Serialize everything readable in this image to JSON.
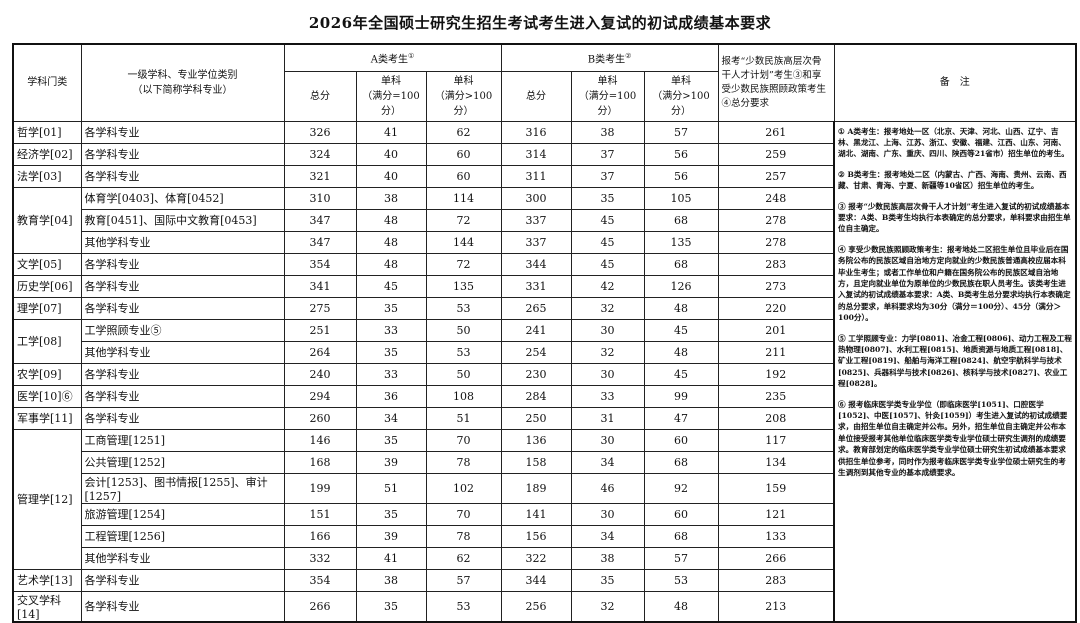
{
  "title": "2026年全国硕士研究生招生考试考生进入复试的初试成绩基本要求",
  "headers": {
    "discipline": "学科门类",
    "major": "一级学科、专业学位类别\n（以下简称学科专业）",
    "group_a": "A类考生",
    "group_a_mark": "①",
    "group_b": "B类考生",
    "group_b_mark": "②",
    "minority": "报考“少数民族高层次骨干人才计划”考生③和享受少数民族照顾政策考生④总分要求",
    "notes": "备　注",
    "total": "总分",
    "single_100": "单科\n（满分=100分）",
    "single_gt100": "单科\n（满分>100分）"
  },
  "rows": [
    {
      "discipline": "哲学[01]",
      "span": 1,
      "major": "各学科专业",
      "a": [
        "326",
        "41",
        "62"
      ],
      "b": [
        "316",
        "38",
        "57"
      ],
      "m": "261"
    },
    {
      "discipline": "经济学[02]",
      "span": 1,
      "major": "各学科专业",
      "a": [
        "324",
        "40",
        "60"
      ],
      "b": [
        "314",
        "37",
        "56"
      ],
      "m": "259"
    },
    {
      "discipline": "法学[03]",
      "span": 1,
      "major": "各学科专业",
      "a": [
        "321",
        "40",
        "60"
      ],
      "b": [
        "311",
        "37",
        "56"
      ],
      "m": "257"
    },
    {
      "discipline": "教育学[04]",
      "span": 3,
      "major": "体育学[0403]、体育[0452]",
      "a": [
        "310",
        "38",
        "114"
      ],
      "b": [
        "300",
        "35",
        "105"
      ],
      "m": "248"
    },
    {
      "major": "教育[0451]、国际中文教育[0453]",
      "a": [
        "347",
        "48",
        "72"
      ],
      "b": [
        "337",
        "45",
        "68"
      ],
      "m": "278"
    },
    {
      "major": "其他学科专业",
      "a": [
        "347",
        "48",
        "144"
      ],
      "b": [
        "337",
        "45",
        "135"
      ],
      "m": "278"
    },
    {
      "discipline": "文学[05]",
      "span": 1,
      "major": "各学科专业",
      "a": [
        "354",
        "48",
        "72"
      ],
      "b": [
        "344",
        "45",
        "68"
      ],
      "m": "283"
    },
    {
      "discipline": "历史学[06]",
      "span": 1,
      "major": "各学科专业",
      "a": [
        "341",
        "45",
        "135"
      ],
      "b": [
        "331",
        "42",
        "126"
      ],
      "m": "273"
    },
    {
      "discipline": "理学[07]",
      "span": 1,
      "major": "各学科专业",
      "a": [
        "275",
        "35",
        "53"
      ],
      "b": [
        "265",
        "32",
        "48"
      ],
      "m": "220"
    },
    {
      "discipline": "工学[08]",
      "span": 2,
      "major": "工学照顾专业⑤",
      "a": [
        "251",
        "33",
        "50"
      ],
      "b": [
        "241",
        "30",
        "45"
      ],
      "m": "201"
    },
    {
      "major": "其他学科专业",
      "a": [
        "264",
        "35",
        "53"
      ],
      "b": [
        "254",
        "32",
        "48"
      ],
      "m": "211"
    },
    {
      "discipline": "农学[09]",
      "span": 1,
      "major": "各学科专业",
      "a": [
        "240",
        "33",
        "50"
      ],
      "b": [
        "230",
        "30",
        "45"
      ],
      "m": "192"
    },
    {
      "discipline": "医学[10]⑥",
      "span": 1,
      "major": "各学科专业",
      "a": [
        "294",
        "36",
        "108"
      ],
      "b": [
        "284",
        "33",
        "99"
      ],
      "m": "235"
    },
    {
      "discipline": "军事学[11]",
      "span": 1,
      "major": "各学科专业",
      "a": [
        "260",
        "34",
        "51"
      ],
      "b": [
        "250",
        "31",
        "47"
      ],
      "m": "208"
    },
    {
      "discipline": "管理学[12]",
      "span": 6,
      "major": "工商管理[1251]",
      "a": [
        "146",
        "35",
        "70"
      ],
      "b": [
        "136",
        "30",
        "60"
      ],
      "m": "117"
    },
    {
      "major": "公共管理[1252]",
      "a": [
        "168",
        "39",
        "78"
      ],
      "b": [
        "158",
        "34",
        "68"
      ],
      "m": "134"
    },
    {
      "major": "会计[1253]、图书情报[1255]、审计[1257]",
      "a": [
        "199",
        "51",
        "102"
      ],
      "b": [
        "189",
        "46",
        "92"
      ],
      "m": "159"
    },
    {
      "major": "旅游管理[1254]",
      "a": [
        "151",
        "35",
        "70"
      ],
      "b": [
        "141",
        "30",
        "60"
      ],
      "m": "121"
    },
    {
      "major": "工程管理[1256]",
      "a": [
        "166",
        "39",
        "78"
      ],
      "b": [
        "156",
        "34",
        "68"
      ],
      "m": "133"
    },
    {
      "major": "其他学科专业",
      "a": [
        "332",
        "41",
        "62"
      ],
      "b": [
        "322",
        "38",
        "57"
      ],
      "m": "266"
    },
    {
      "discipline": "艺术学[13]",
      "span": 1,
      "major": "各学科专业",
      "a": [
        "354",
        "38",
        "57"
      ],
      "b": [
        "344",
        "35",
        "53"
      ],
      "m": "283"
    },
    {
      "discipline": "交叉学科[14]",
      "span": 1,
      "major": "各学科专业",
      "a": [
        "266",
        "35",
        "53"
      ],
      "b": [
        "256",
        "32",
        "48"
      ],
      "m": "213"
    }
  ],
  "notes": [
    "① A类考生：报考地处一区（北京、天津、河北、山西、辽宁、吉林、黑龙江、上海、江苏、浙江、安徽、福建、江西、山东、河南、湖北、湖南、广东、重庆、四川、陕西等21省市）招生单位的考生。",
    "② B类考生：报考地处二区（内蒙古、广西、海南、贵州、云南、西藏、甘肃、青海、宁夏、新疆等10省区）招生单位的考生。",
    "③ 报考“少数民族高层次骨干人才计划”考生进入复试的初试成绩基本要求：A类、B类考生均执行本表确定的总分要求，单科要求由招生单位自主确定。",
    "④ 享受少数民族照顾政策考生：报考地处二区招生单位且毕业后在国务院公布的民族区域自治地方定向就业的少数民族普通高校应届本科毕业生考生；或者工作单位和户籍在国务院公布的民族区域自治地方，且定向就业单位为原单位的少数民族在职人员考生。该类考生进入复试的初试成绩基本要求：A类、B类考生总分要求均执行本表确定的总分要求，单科要求均为30分（满分＝100分）、45分（满分＞100分）。",
    "⑤ 工学照顾专业：力学[0801]、冶金工程[0806]、动力工程及工程热物理[0807]、水利工程[0815]、地质资源与地质工程[0818]、矿业工程[0819]、船舶与海洋工程[0824]、航空宇航科学与技术[0825]、兵器科学与技术[0826]、核科学与技术[0827]、农业工程[0828]。",
    "⑥ 报考临床医学类专业学位（即临床医学[1051]、口腔医学[1052]、中医[1057]、针灸[1059]）考生进入复试的初试成绩要求，由招生单位自主确定并公布。另外，招生单位自主确定并公布本单位接受报考其他单位临床医学类专业学位硕士研究生调剂的成绩要求。教育部划定的临床医学类专业学位硕士研究生初试成绩基本要求供招生单位参考，同时作为报考临床医学类专业学位硕士研究生的考生调剂到其他专业的基本成绩要求。"
  ]
}
